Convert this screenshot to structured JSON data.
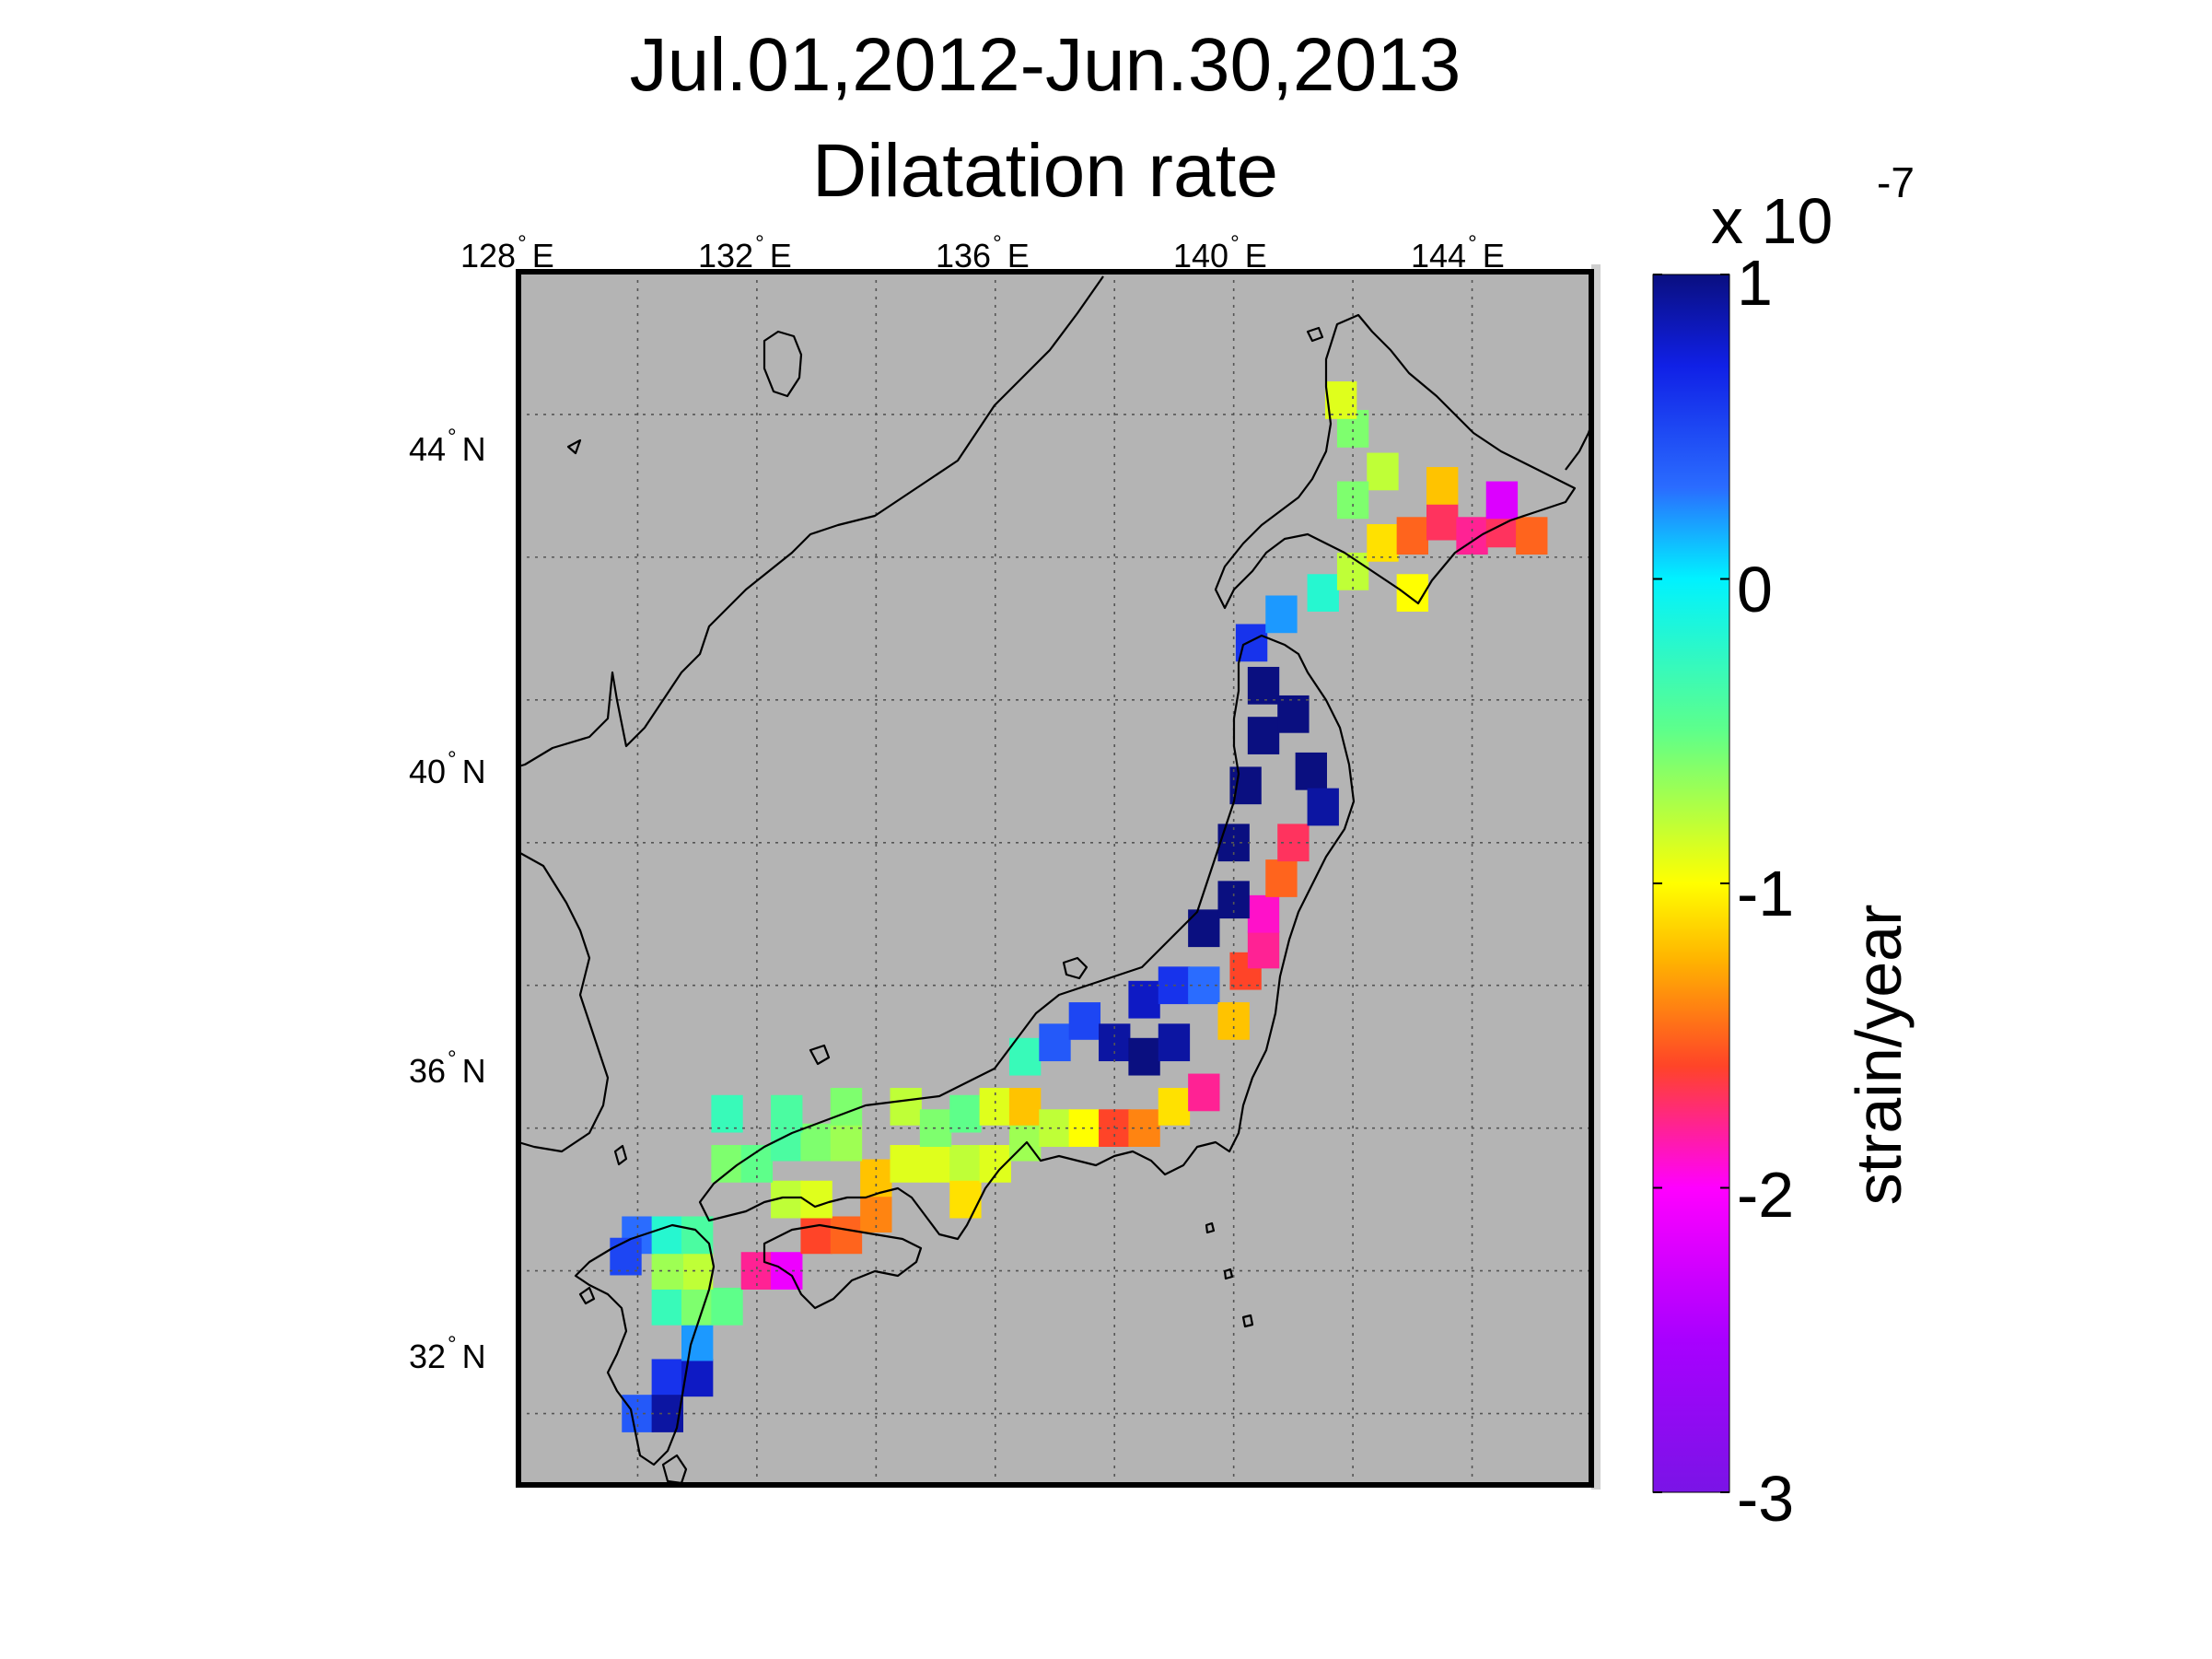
{
  "title_line1": "Jul.01,2012-Jun.30,2013",
  "title_line2": "Dilatation rate",
  "map": {
    "lon_range": [
      128,
      146
    ],
    "lat_range": [
      30,
      47
    ],
    "lon_ticks": [
      {
        "value": 128,
        "num": "128",
        "dir": "E"
      },
      {
        "value": 132,
        "num": "132",
        "dir": "E"
      },
      {
        "value": 136,
        "num": "136",
        "dir": "E"
      },
      {
        "value": 140,
        "num": "140",
        "dir": "E"
      },
      {
        "value": 144,
        "num": "144",
        "dir": "E"
      }
    ],
    "lat_ticks": [
      {
        "value": 44,
        "num": "44",
        "dir": "N"
      },
      {
        "value": 40,
        "num": "40",
        "dir": "N"
      },
      {
        "value": 36,
        "num": "36",
        "dir": "N"
      },
      {
        "value": 32,
        "num": "32",
        "dir": "N"
      }
    ],
    "gridlines": true,
    "land_background": "#b4b4b4"
  },
  "colorbar": {
    "label": "strain/year",
    "multiplier_base": "x 10",
    "multiplier_exp": "-7",
    "range": [
      -3,
      1
    ],
    "ticks": [
      {
        "value": 1,
        "label": "1"
      },
      {
        "value": 0,
        "label": "0"
      },
      {
        "value": -1,
        "label": "-1"
      },
      {
        "value": -2,
        "label": "-2"
      },
      {
        "value": -3,
        "label": "-3"
      }
    ],
    "colormap": [
      {
        "value": 1.0,
        "color": "#0a0f80"
      },
      {
        "value": 0.7,
        "color": "#1020e6"
      },
      {
        "value": 0.3,
        "color": "#2a6cff"
      },
      {
        "value": 0.0,
        "color": "#00f2ff"
      },
      {
        "value": -0.5,
        "color": "#5eff8a"
      },
      {
        "value": -1.0,
        "color": "#ffff00"
      },
      {
        "value": -1.25,
        "color": "#ffb400"
      },
      {
        "value": -1.6,
        "color": "#ff4428"
      },
      {
        "value": -2.0,
        "color": "#ff00ff"
      },
      {
        "value": -2.5,
        "color": "#a800ff"
      },
      {
        "value": -3.0,
        "color": "#7a14e6"
      }
    ]
  },
  "chart_data": {
    "type": "heatmap",
    "title": "Jul.01,2012-Jun.30,2013 Dilatation rate",
    "value_unit": "strain/year (x 10^-7)",
    "cells_lon_lat_value": [
      [
        130.0,
        31.0,
        0.4
      ],
      [
        130.5,
        31.5,
        0.6
      ],
      [
        130.5,
        31.0,
        0.9
      ],
      [
        131.0,
        31.5,
        0.8
      ],
      [
        131.0,
        32.0,
        0.2
      ],
      [
        130.5,
        32.5,
        -0.3
      ],
      [
        131.0,
        32.5,
        -0.6
      ],
      [
        131.5,
        32.5,
        -0.5
      ],
      [
        131.0,
        33.0,
        -0.8
      ],
      [
        130.5,
        33.0,
        -0.7
      ],
      [
        130.0,
        33.5,
        0.3
      ],
      [
        129.8,
        33.2,
        0.5
      ],
      [
        130.5,
        33.5,
        -0.2
      ],
      [
        131.0,
        33.5,
        -0.4
      ],
      [
        132.0,
        33.0,
        -1.8
      ],
      [
        132.5,
        33.0,
        -2.1
      ],
      [
        133.0,
        33.5,
        -1.6
      ],
      [
        133.5,
        33.5,
        -1.5
      ],
      [
        134.0,
        33.8,
        -1.4
      ],
      [
        132.5,
        34.0,
        -0.8
      ],
      [
        133.0,
        34.0,
        -0.9
      ],
      [
        134.0,
        34.3,
        -1.2
      ],
      [
        134.5,
        34.5,
        -0.9
      ],
      [
        131.5,
        34.5,
        -0.6
      ],
      [
        132.0,
        34.5,
        -0.5
      ],
      [
        132.5,
        34.8,
        -0.4
      ],
      [
        133.0,
        34.8,
        -0.6
      ],
      [
        133.5,
        34.8,
        -0.7
      ],
      [
        131.5,
        35.2,
        -0.3
      ],
      [
        132.5,
        35.2,
        -0.4
      ],
      [
        133.5,
        35.3,
        -0.6
      ],
      [
        134.5,
        35.3,
        -0.8
      ],
      [
        135.0,
        34.5,
        -0.9
      ],
      [
        135.5,
        34.5,
        -0.8
      ],
      [
        135.5,
        34.0,
        -1.1
      ],
      [
        136.0,
        34.5,
        -0.9
      ],
      [
        136.5,
        34.8,
        -0.7
      ],
      [
        135.0,
        35.0,
        -0.6
      ],
      [
        135.5,
        35.2,
        -0.5
      ],
      [
        136.0,
        35.3,
        -0.9
      ],
      [
        136.5,
        35.3,
        -1.2
      ],
      [
        137.0,
        35.0,
        -0.8
      ],
      [
        137.5,
        35.0,
        -1.0
      ],
      [
        138.0,
        35.0,
        -1.6
      ],
      [
        138.5,
        35.0,
        -1.4
      ],
      [
        139.0,
        35.3,
        -1.1
      ],
      [
        139.5,
        35.5,
        -1.8
      ],
      [
        136.5,
        36.0,
        -0.3
      ],
      [
        137.0,
        36.2,
        0.4
      ],
      [
        137.5,
        36.5,
        0.5
      ],
      [
        138.0,
        36.2,
        0.9
      ],
      [
        138.5,
        36.0,
        1.0
      ],
      [
        139.0,
        36.2,
        0.9
      ],
      [
        138.5,
        36.8,
        0.8
      ],
      [
        139.0,
        37.0,
        0.6
      ],
      [
        139.5,
        37.0,
        0.3
      ],
      [
        140.0,
        36.5,
        -1.2
      ],
      [
        140.2,
        37.2,
        -1.6
      ],
      [
        140.5,
        37.5,
        -1.8
      ],
      [
        140.5,
        38.0,
        -1.9
      ],
      [
        140.8,
        38.5,
        -1.5
      ],
      [
        141.0,
        39.0,
        -1.7
      ],
      [
        139.5,
        37.8,
        1.0
      ],
      [
        140.0,
        38.2,
        1.0
      ],
      [
        140.0,
        39.0,
        1.0
      ],
      [
        140.2,
        39.8,
        1.0
      ],
      [
        140.5,
        40.5,
        1.0
      ],
      [
        141.0,
        40.8,
        1.0
      ],
      [
        141.3,
        40.0,
        1.0
      ],
      [
        141.5,
        39.5,
        0.9
      ],
      [
        140.5,
        41.2,
        1.0
      ],
      [
        140.3,
        41.8,
        0.6
      ],
      [
        140.8,
        42.2,
        0.2
      ],
      [
        141.5,
        42.5,
        -0.2
      ],
      [
        142.0,
        42.8,
        -0.8
      ],
      [
        143.0,
        42.5,
        -1.0
      ],
      [
        142.5,
        43.2,
        -1.1
      ],
      [
        143.0,
        43.3,
        -1.5
      ],
      [
        143.5,
        43.5,
        -1.7
      ],
      [
        144.0,
        43.3,
        -1.8
      ],
      [
        144.5,
        43.4,
        -1.7
      ],
      [
        145.0,
        43.3,
        -1.5
      ],
      [
        144.5,
        43.8,
        -2.2
      ],
      [
        143.5,
        44.0,
        -1.2
      ],
      [
        142.5,
        44.2,
        -0.8
      ],
      [
        142.0,
        44.8,
        -0.6
      ],
      [
        141.8,
        45.2,
        -0.9
      ],
      [
        142.0,
        43.8,
        -0.6
      ]
    ]
  }
}
